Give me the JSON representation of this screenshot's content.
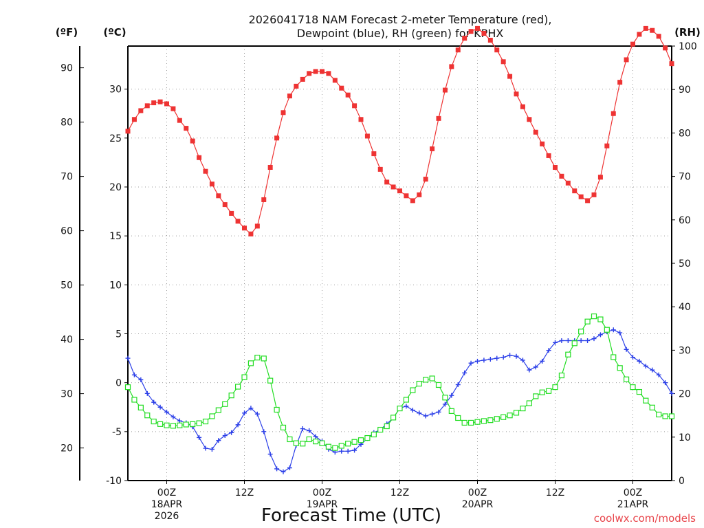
{
  "chart_data": {
    "type": "line",
    "title_lines": [
      "2026041718 NAM Forecast 2-meter Temperature (red),",
      "Dewpoint (blue), RH (green) for KPHX"
    ],
    "xlabel": "Forecast Time (UTC)",
    "credit": "coolwx.com/models",
    "grid": true,
    "x_unit": "forecast hour from 2026-04-17 18Z",
    "xlim": [
      0,
      84
    ],
    "axes": {
      "fahrenheit": {
        "label": "(ºF)",
        "ticks": [
          20,
          30,
          40,
          50,
          60,
          70,
          80,
          90
        ],
        "ylim": [
          14,
          94
        ]
      },
      "celsius": {
        "label": "(ºC)",
        "ticks": [
          -10,
          -5,
          0,
          5,
          10,
          15,
          20,
          25,
          30
        ],
        "ylim": [
          -10,
          34.4
        ]
      },
      "rh": {
        "label": "(RH)",
        "ticks": [
          0,
          10,
          20,
          30,
          40,
          50,
          60,
          70,
          80,
          90,
          100
        ],
        "ylim": [
          0,
          100
        ]
      }
    },
    "x_ticks": [
      {
        "hour": 6,
        "lines": [
          "00Z",
          "18APR",
          "2026"
        ]
      },
      {
        "hour": 18,
        "lines": [
          "12Z"
        ]
      },
      {
        "hour": 30,
        "lines": [
          "00Z",
          "19APR"
        ]
      },
      {
        "hour": 42,
        "lines": [
          "12Z"
        ]
      },
      {
        "hour": 54,
        "lines": [
          "00Z",
          "20APR"
        ]
      },
      {
        "hour": 66,
        "lines": [
          "12Z"
        ]
      },
      {
        "hour": 78,
        "lines": [
          "00Z",
          "21APR"
        ]
      }
    ],
    "x": [
      0,
      1,
      2,
      3,
      4,
      5,
      6,
      7,
      8,
      9,
      10,
      11,
      12,
      13,
      14,
      15,
      16,
      17,
      18,
      19,
      20,
      21,
      22,
      23,
      24,
      25,
      26,
      27,
      28,
      29,
      30,
      31,
      32,
      33,
      34,
      35,
      36,
      37,
      38,
      39,
      40,
      41,
      42,
      43,
      44,
      45,
      46,
      47,
      48,
      49,
      50,
      51,
      52,
      53,
      54,
      55,
      56,
      57,
      58,
      59,
      60,
      61,
      62,
      63,
      64,
      65,
      66,
      67,
      68,
      69,
      70,
      71,
      72,
      73,
      74,
      75,
      76,
      77,
      78,
      79,
      80,
      81,
      82,
      83,
      84
    ],
    "series": [
      {
        "name": "Temperature",
        "unit": "°C",
        "color": "#ee3333",
        "marker": "filled-square",
        "values": [
          25.7,
          26.9,
          27.8,
          28.3,
          28.6,
          28.7,
          28.5,
          28.0,
          26.8,
          26.0,
          24.7,
          23.0,
          21.6,
          20.3,
          19.1,
          18.2,
          17.3,
          16.5,
          15.8,
          15.2,
          16.0,
          18.7,
          22.0,
          25.0,
          27.6,
          29.3,
          30.3,
          31.0,
          31.6,
          31.8,
          31.8,
          31.6,
          30.9,
          30.1,
          29.4,
          28.3,
          26.9,
          25.2,
          23.4,
          21.8,
          20.5,
          20.0,
          19.6,
          19.1,
          18.6,
          19.2,
          20.8,
          23.9,
          27.0,
          29.9,
          32.3,
          34.0,
          35.2,
          35.9,
          36.2,
          35.7,
          35.0,
          34.0,
          32.8,
          31.3,
          29.5,
          28.2,
          26.9,
          25.6,
          24.4,
          23.2,
          22.0,
          21.1,
          20.4,
          19.6,
          19.0,
          18.6,
          19.2,
          21.0,
          24.2,
          27.5,
          30.7,
          33.0,
          34.6,
          35.6,
          36.2,
          36.0,
          35.4,
          34.2,
          32.6
        ]
      },
      {
        "name": "Dewpoint",
        "unit": "°C",
        "color": "#2a3ee8",
        "marker": "plus",
        "values": [
          2.5,
          0.8,
          0.3,
          -1.1,
          -2.0,
          -2.5,
          -3.0,
          -3.5,
          -3.9,
          -4.1,
          -4.5,
          -5.6,
          -6.7,
          -6.8,
          -5.9,
          -5.4,
          -5.1,
          -4.3,
          -3.1,
          -2.6,
          -3.2,
          -5.0,
          -7.3,
          -8.8,
          -9.1,
          -8.7,
          -6.4,
          -4.7,
          -4.9,
          -5.5,
          -6.0,
          -6.8,
          -7.1,
          -7.0,
          -7.0,
          -6.9,
          -6.3,
          -5.7,
          -5.1,
          -4.8,
          -4.2,
          -3.6,
          -2.6,
          -2.4,
          -2.8,
          -3.1,
          -3.4,
          -3.2,
          -3.0,
          -2.2,
          -1.3,
          -0.2,
          1.0,
          2.0,
          2.2,
          2.3,
          2.4,
          2.5,
          2.6,
          2.8,
          2.7,
          2.3,
          1.3,
          1.6,
          2.2,
          3.3,
          4.1,
          4.3,
          4.3,
          4.3,
          4.3,
          4.3,
          4.5,
          4.9,
          5.2,
          5.4,
          5.1,
          3.4,
          2.6,
          2.2,
          1.7,
          1.3,
          0.8,
          0.0,
          -1.1
        ]
      },
      {
        "name": "RH",
        "unit": "%",
        "color": "#22dd22",
        "marker": "open-square",
        "values": [
          21.5,
          18.6,
          16.8,
          15.0,
          13.6,
          13.0,
          12.7,
          12.6,
          12.7,
          12.9,
          13.0,
          13.2,
          13.6,
          14.8,
          16.2,
          17.6,
          19.6,
          21.6,
          23.8,
          27.0,
          28.3,
          28.1,
          23.0,
          16.3,
          12.2,
          9.5,
          8.6,
          8.5,
          9.5,
          9.0,
          8.6,
          7.8,
          7.5,
          8.0,
          8.5,
          8.9,
          9.3,
          9.8,
          10.6,
          11.7,
          12.5,
          14.5,
          16.6,
          18.6,
          20.8,
          22.3,
          23.2,
          23.5,
          22.0,
          19.1,
          16.0,
          14.4,
          13.3,
          13.3,
          13.5,
          13.7,
          13.9,
          14.2,
          14.6,
          15.0,
          15.6,
          16.6,
          17.8,
          19.4,
          20.3,
          20.6,
          21.5,
          24.2,
          29.0,
          31.6,
          34.3,
          36.6,
          37.8,
          37.1,
          34.7,
          28.4,
          25.9,
          23.3,
          21.5,
          20.4,
          18.4,
          16.8,
          15.2,
          14.8,
          14.8
        ]
      }
    ]
  }
}
